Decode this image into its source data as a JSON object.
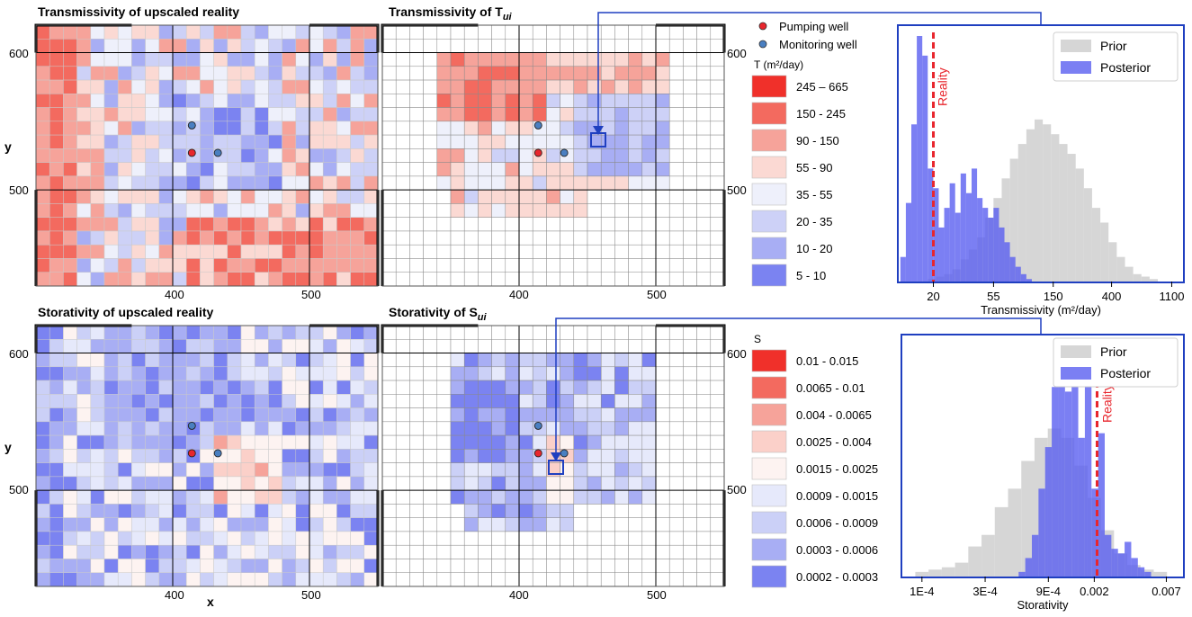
{
  "panels": {
    "top_left_title": "Transmissivity of upscaled reality",
    "top_mid_title_main": "Transmissivity of T",
    "top_mid_title_sub": "ui",
    "bottom_left_title": "Storativity of upscaled reality",
    "bottom_mid_title_main": "Storativity of S",
    "bottom_mid_title_sub": "ui",
    "y_label": "y",
    "x_label": "x",
    "y_ticks": [
      "600",
      "500"
    ],
    "x_ticks": [
      "400",
      "500"
    ]
  },
  "wells": {
    "pumping_label": "Pumping well",
    "monitoring_label": "Monitoring well",
    "pumping_color": "#e8262d",
    "monitoring_color": "#4a7fc1"
  },
  "legend_T": {
    "title": "T (m²/day)",
    "bins": [
      "245 – 665",
      "150 - 245",
      "90 - 150",
      "55 - 90",
      "35 - 55",
      "20 - 35",
      "10 - 20",
      "5 - 10"
    ],
    "colors": [
      "#f0302a",
      "#f36a5f",
      "#f6a39a",
      "#fbd9d3",
      "#eef0fb",
      "#cdd1f7",
      "#a8aef4",
      "#7b83f1"
    ]
  },
  "legend_S": {
    "title": "S",
    "bins": [
      "0.01 - 0.015",
      "0.0065 - 0.01",
      "0.004 - 0.0065",
      "0.0025 - 0.004",
      "0.0015 - 0.0025",
      "0.0009 - 0.0015",
      "0.0006 - 0.0009",
      "0.0003 - 0.0006",
      "0.0002 - 0.0003"
    ],
    "colors": [
      "#f0302a",
      "#f36a5f",
      "#f6a39a",
      "#fbd0c9",
      "#fdf3f1",
      "#e6e9fb",
      "#cbd0f7",
      "#a8aef4",
      "#7b83f1"
    ]
  },
  "accent": {
    "link": "#1f3fc0",
    "reality": "#e8262d",
    "prior": "#c8c8c8",
    "posterior": "#5a5ff0"
  },
  "chart_data": [
    {
      "type": "bar",
      "title": "",
      "xlabel": "Transmissivity (m²/day)",
      "ylabel": "",
      "x_ticks": [
        "20",
        "55",
        "150",
        "400",
        "1100"
      ],
      "x_scale": "log",
      "xlim": [
        11,
        1350
      ],
      "reality_label": "Reality",
      "reality_value": 20,
      "legend": [
        "Prior",
        "Posterior"
      ],
      "legend_position": "top-right",
      "series": [
        {
          "name": "Prior",
          "bins_log10": [
            [
              1.26,
              1.32,
              1
            ],
            [
              1.32,
              1.38,
              2
            ],
            [
              1.38,
              1.44,
              3
            ],
            [
              1.44,
              1.5,
              5
            ],
            [
              1.5,
              1.56,
              9
            ],
            [
              1.56,
              1.62,
              13
            ],
            [
              1.62,
              1.68,
              18
            ],
            [
              1.68,
              1.74,
              26
            ],
            [
              1.74,
              1.8,
              34
            ],
            [
              1.8,
              1.86,
              42
            ],
            [
              1.86,
              1.92,
              50
            ],
            [
              1.92,
              1.98,
              56
            ],
            [
              1.98,
              2.04,
              62
            ],
            [
              2.04,
              2.1,
              66
            ],
            [
              2.1,
              2.16,
              64
            ],
            [
              2.16,
              2.22,
              60
            ],
            [
              2.22,
              2.28,
              56
            ],
            [
              2.28,
              2.34,
              52
            ],
            [
              2.34,
              2.4,
              46
            ],
            [
              2.4,
              2.46,
              38
            ],
            [
              2.46,
              2.52,
              30
            ],
            [
              2.52,
              2.58,
              24
            ],
            [
              2.58,
              2.64,
              16
            ],
            [
              2.64,
              2.7,
              10
            ],
            [
              2.7,
              2.76,
              6
            ],
            [
              2.76,
              2.82,
              3
            ],
            [
              2.82,
              2.88,
              2
            ],
            [
              2.88,
              2.94,
              1
            ]
          ]
        },
        {
          "name": "Posterior",
          "bins_log10": [
            [
              1.06,
              1.1,
              10
            ],
            [
              1.1,
              1.14,
              32
            ],
            [
              1.14,
              1.18,
              64
            ],
            [
              1.18,
              1.22,
              100
            ],
            [
              1.22,
              1.26,
              92
            ],
            [
              1.26,
              1.3,
              46
            ],
            [
              1.3,
              1.34,
              38
            ],
            [
              1.34,
              1.38,
              22
            ],
            [
              1.38,
              1.42,
              30
            ],
            [
              1.42,
              1.46,
              40
            ],
            [
              1.46,
              1.5,
              28
            ],
            [
              1.5,
              1.54,
              44
            ],
            [
              1.54,
              1.58,
              36
            ],
            [
              1.58,
              1.62,
              46
            ],
            [
              1.62,
              1.66,
              34
            ],
            [
              1.66,
              1.7,
              30
            ],
            [
              1.7,
              1.74,
              26
            ],
            [
              1.74,
              1.78,
              30
            ],
            [
              1.78,
              1.82,
              22
            ],
            [
              1.82,
              1.86,
              16
            ],
            [
              1.86,
              1.9,
              10
            ],
            [
              1.9,
              1.94,
              6
            ],
            [
              1.94,
              1.98,
              3
            ],
            [
              1.98,
              2.02,
              1
            ]
          ]
        }
      ]
    },
    {
      "type": "bar",
      "title": "",
      "xlabel": "Storativity",
      "ylabel": "",
      "x_ticks": [
        "1E-4",
        "3E-4",
        "9E-4",
        "0.002",
        "0.007"
      ],
      "x_scale": "log",
      "xlim": [
        7e-05,
        0.0095
      ],
      "reality_label": "Reality",
      "reality_value": 0.0021,
      "legend": [
        "Prior",
        "Posterior"
      ],
      "legend_position": "top-right",
      "series": [
        {
          "name": "Prior",
          "bins_log10": [
            [
              -4.05,
              -3.95,
              2
            ],
            [
              -3.95,
              -3.85,
              3
            ],
            [
              -3.85,
              -3.75,
              4
            ],
            [
              -3.75,
              -3.65,
              6
            ],
            [
              -3.65,
              -3.55,
              13
            ],
            [
              -3.55,
              -3.45,
              18
            ],
            [
              -3.45,
              -3.35,
              30
            ],
            [
              -3.35,
              -3.25,
              38
            ],
            [
              -3.25,
              -3.15,
              50
            ],
            [
              -3.15,
              -3.05,
              60
            ],
            [
              -3.05,
              -2.95,
              64
            ],
            [
              -2.95,
              -2.85,
              60
            ],
            [
              -2.85,
              -2.75,
              48
            ],
            [
              -2.75,
              -2.65,
              34
            ],
            [
              -2.65,
              -2.55,
              20
            ],
            [
              -2.55,
              -2.45,
              10
            ],
            [
              -2.45,
              -2.35,
              5
            ],
            [
              -2.35,
              -2.25,
              3
            ],
            [
              -2.25,
              -2.15,
              2
            ]
          ]
        },
        {
          "name": "Posterior",
          "bins_log10": [
            [
              -3.27,
              -3.22,
              2
            ],
            [
              -3.22,
              -3.17,
              8
            ],
            [
              -3.17,
              -3.12,
              18
            ],
            [
              -3.12,
              -3.07,
              38
            ],
            [
              -3.07,
              -3.02,
              56
            ],
            [
              -3.02,
              -2.97,
              82
            ],
            [
              -2.97,
              -2.92,
              94
            ],
            [
              -2.92,
              -2.87,
              80
            ],
            [
              -2.87,
              -2.82,
              96
            ],
            [
              -2.82,
              -2.77,
              60
            ],
            [
              -2.77,
              -2.72,
              100
            ],
            [
              -2.72,
              -2.67,
              38
            ],
            [
              -2.67,
              -2.62,
              62
            ],
            [
              -2.62,
              -2.57,
              18
            ],
            [
              -2.57,
              -2.52,
              12
            ],
            [
              -2.52,
              -2.47,
              10
            ],
            [
              -2.47,
              -2.42,
              15
            ],
            [
              -2.42,
              -2.37,
              8
            ],
            [
              -2.37,
              -2.32,
              4
            ],
            [
              -2.32,
              -2.27,
              2
            ]
          ]
        }
      ]
    }
  ]
}
